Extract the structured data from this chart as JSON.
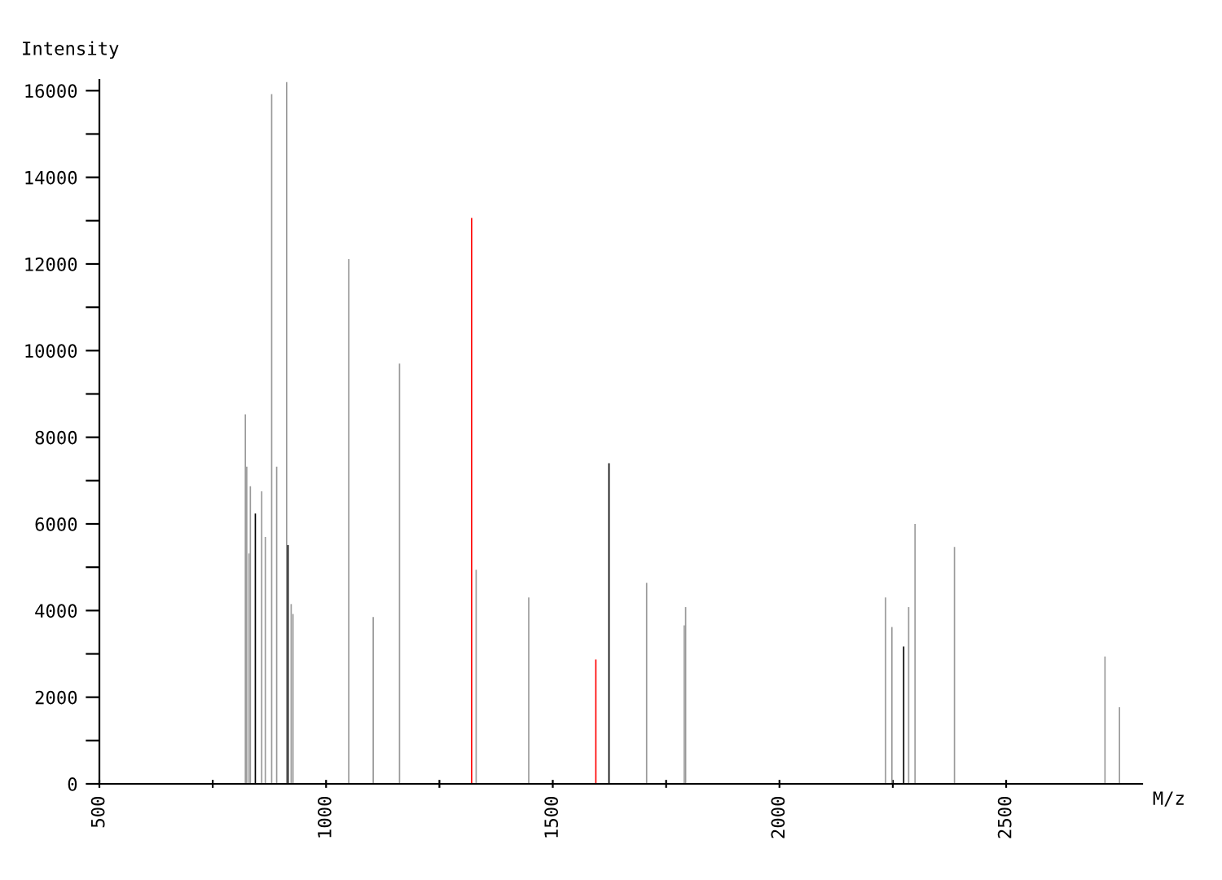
{
  "chart_data": {
    "type": "bar",
    "xlabel": "M/z",
    "ylabel": "Intensity",
    "xlim": [
      500,
      2800
    ],
    "ylim": [
      0,
      16250
    ],
    "xticks": [
      500,
      {
        "value": 750,
        "label": null
      },
      1000,
      {
        "value": 1250,
        "label": null
      },
      1500,
      {
        "value": 1750,
        "label": null
      },
      2000,
      {
        "value": 2250,
        "label": null
      },
      2500
    ],
    "yticks": [
      0,
      {
        "value": 1000,
        "label": null
      },
      2000,
      {
        "value": 3000,
        "label": null
      },
      4000,
      {
        "value": 5000,
        "label": null
      },
      6000,
      {
        "value": 7000,
        "label": null
      },
      8000,
      {
        "value": 9000,
        "label": null
      },
      10000,
      {
        "value": 11000,
        "label": null
      },
      12000,
      {
        "value": 13000,
        "label": null
      },
      14000,
      {
        "value": 15000,
        "label": null
      },
      16000
    ],
    "grid": false,
    "series": [
      {
        "color": "#999999",
        "x": [
          822,
          825,
          830,
          833,
          858,
          866,
          880,
          891,
          913,
          923,
          927,
          1050,
          1104,
          1162,
          1331,
          1447,
          1707,
          1790,
          1793,
          2234,
          2248,
          2285,
          2299,
          2386,
          2718,
          2750
        ],
        "values": [
          8530,
          7320,
          5320,
          6870,
          6750,
          5700,
          15920,
          7320,
          16200,
          4150,
          3920,
          12110,
          3850,
          9700,
          4940,
          4300,
          4640,
          3660,
          4080,
          4300,
          3620,
          4080,
          6000,
          5470,
          2940,
          1770
        ]
      },
      {
        "color": "#000000",
        "x": [
          844,
          916,
          1624,
          2274
        ],
        "values": [
          6240,
          5510,
          7400,
          3170
        ]
      },
      {
        "color": "#ff0000",
        "x": [
          1321,
          1595
        ],
        "values": [
          13060,
          2870
        ]
      }
    ]
  }
}
